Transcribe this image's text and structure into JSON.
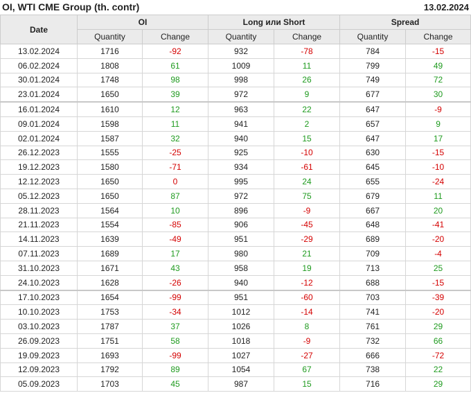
{
  "header": {
    "title": "OI, WTI CME Group (th. contr)",
    "date": "13.02.2024"
  },
  "columns": {
    "date": "Date",
    "groups": [
      "OI",
      "Long или Short",
      "Spread"
    ],
    "quantity": "Quantity",
    "change": "Change"
  },
  "colors": {
    "negative": "#d40000",
    "positive": "#1e9a1e"
  },
  "rows": [
    [
      "13.02.2024",
      1716,
      -92,
      932,
      -78,
      784,
      -15
    ],
    [
      "06.02.2024",
      1808,
      61,
      1009,
      11,
      799,
      49
    ],
    [
      "30.01.2024",
      1748,
      98,
      998,
      26,
      749,
      72
    ],
    [
      "23.01.2024",
      1650,
      39,
      972,
      9,
      677,
      30
    ],
    [
      "16.01.2024",
      1610,
      12,
      963,
      22,
      647,
      -9
    ],
    [
      "09.01.2024",
      1598,
      11,
      941,
      2,
      657,
      9
    ],
    [
      "02.01.2024",
      1587,
      32,
      940,
      15,
      647,
      17
    ],
    [
      "26.12.2023",
      1555,
      -25,
      925,
      -10,
      630,
      -15
    ],
    [
      "19.12.2023",
      1580,
      -71,
      934,
      -61,
      645,
      -10
    ],
    [
      "12.12.2023",
      1650,
      0,
      995,
      24,
      655,
      -24
    ],
    [
      "05.12.2023",
      1650,
      87,
      972,
      75,
      679,
      11
    ],
    [
      "28.11.2023",
      1564,
      10,
      896,
      -9,
      667,
      20
    ],
    [
      "21.11.2023",
      1554,
      -85,
      906,
      -45,
      648,
      -41
    ],
    [
      "14.11.2023",
      1639,
      -49,
      951,
      -29,
      689,
      -20
    ],
    [
      "07.11.2023",
      1689,
      17,
      980,
      21,
      709,
      -4
    ],
    [
      "31.10.2023",
      1671,
      43,
      958,
      19,
      713,
      25
    ],
    [
      "24.10.2023",
      1628,
      -26,
      940,
      -12,
      688,
      -15
    ],
    [
      "17.10.2023",
      1654,
      -99,
      951,
      -60,
      703,
      -39
    ],
    [
      "10.10.2023",
      1753,
      -34,
      1012,
      -14,
      741,
      -20
    ],
    [
      "03.10.2023",
      1787,
      37,
      1026,
      8,
      761,
      29
    ],
    [
      "26.09.2023",
      1751,
      58,
      1018,
      -9,
      732,
      66
    ],
    [
      "19.09.2023",
      1693,
      -99,
      1027,
      -27,
      666,
      -72
    ],
    [
      "12.09.2023",
      1792,
      89,
      1054,
      67,
      738,
      22
    ],
    [
      "05.09.2023",
      1703,
      45,
      987,
      15,
      716,
      29
    ]
  ]
}
